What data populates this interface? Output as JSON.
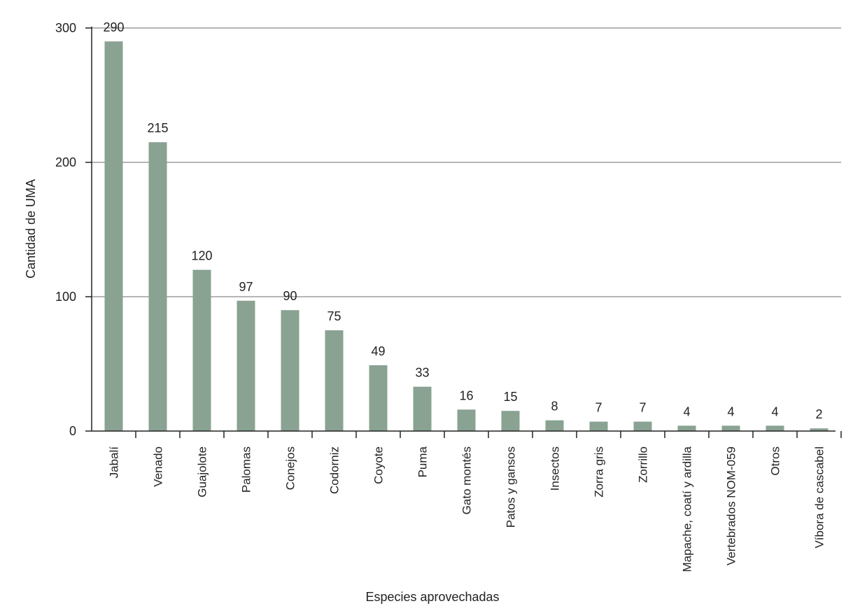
{
  "chart_data": {
    "type": "bar",
    "xlabel": "Especies aprovechadas",
    "ylabel": "Cantidad de UMA",
    "ylim": [
      0,
      300
    ],
    "yticks": [
      0,
      100,
      200,
      300
    ],
    "grid": true,
    "bar_color": "#89a292",
    "categories": [
      "Jabalí",
      "Venado",
      "Guajolote",
      "Palomas",
      "Conejos",
      "Codorniz",
      "Coyote",
      "Puma",
      "Gato montés",
      "Patos y gansos",
      "Insectos",
      "Zorra gris",
      "Zorrillo",
      "Mapache, coatí y ardilla",
      "Vertebrados NOM-059",
      "Otros",
      "Víbora de cascabel"
    ],
    "values": [
      290,
      215,
      120,
      97,
      90,
      75,
      49,
      33,
      16,
      15,
      8,
      7,
      7,
      4,
      4,
      4,
      2
    ]
  }
}
